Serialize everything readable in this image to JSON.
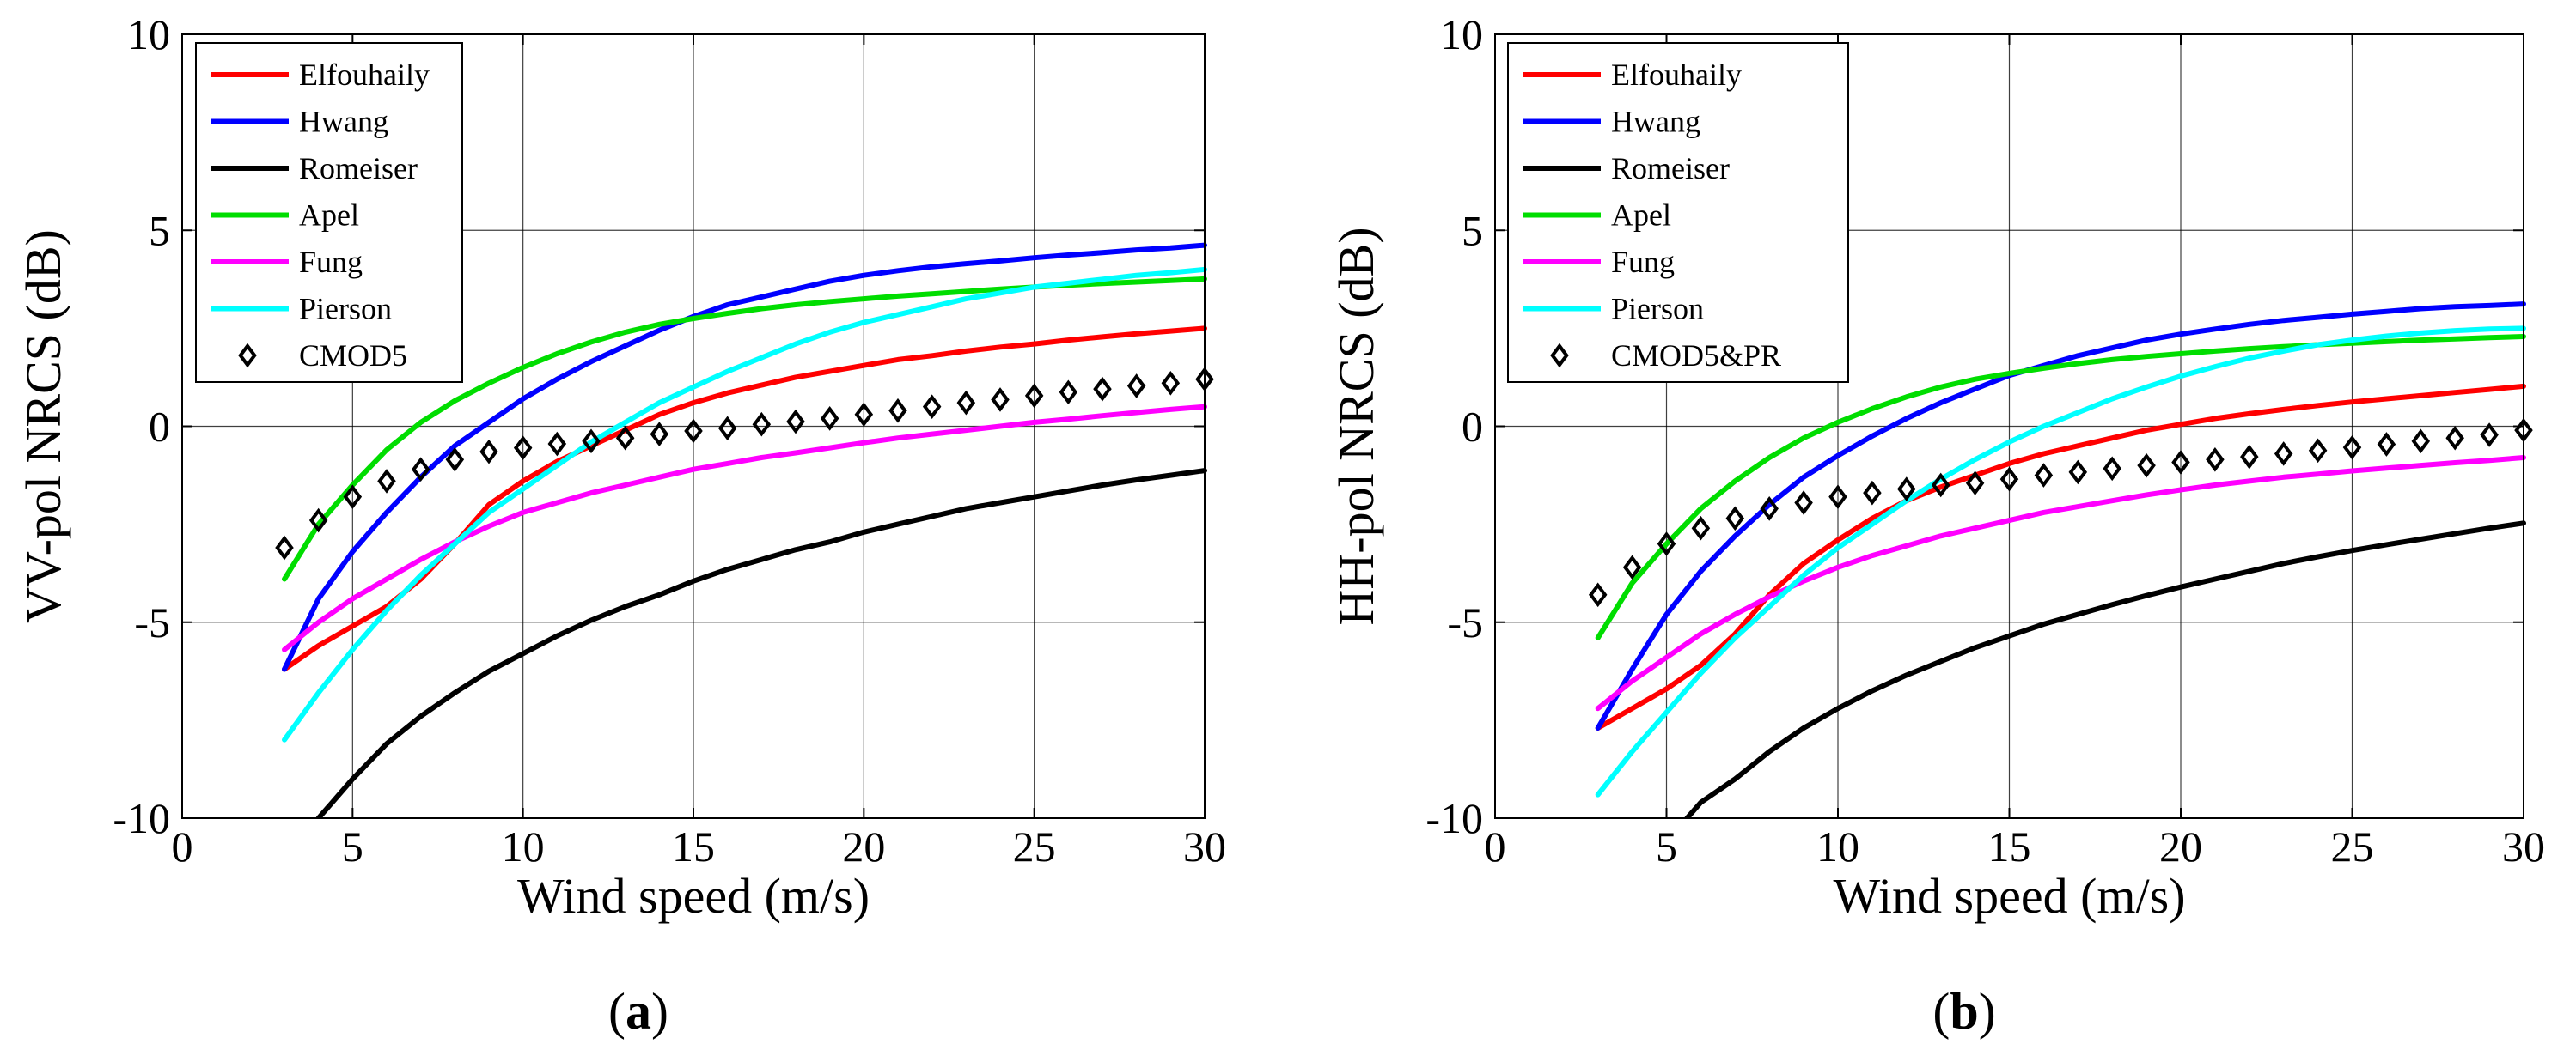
{
  "chart_data": [
    {
      "type": "line",
      "panel_label": "a",
      "xlabel": "Wind speed (m/s)",
      "ylabel": "VV-pol NRCS (dB)",
      "xlim": [
        0,
        30
      ],
      "ylim": [
        -10,
        10
      ],
      "xticks": [
        "0",
        "5",
        "10",
        "15",
        "20",
        "25",
        "30"
      ],
      "yticks": [
        "-10",
        "-5",
        "0",
        "5",
        "10"
      ],
      "grid": true,
      "legend_position": "top-left",
      "series": [
        {
          "name": "Elfouhaily",
          "color": "#ff0000",
          "marker": "none",
          "x": [
            3,
            4,
            5,
            6,
            7,
            8,
            9,
            10,
            11,
            12,
            13,
            14,
            15,
            16,
            17,
            18,
            19,
            20,
            21,
            22,
            23,
            24,
            25,
            26,
            27,
            28,
            29,
            30
          ],
          "y": [
            -6.2,
            -5.6,
            -5.1,
            -4.6,
            -3.9,
            -3.0,
            -2.0,
            -1.4,
            -0.9,
            -0.5,
            -0.1,
            0.3,
            0.6,
            0.85,
            1.05,
            1.25,
            1.4,
            1.55,
            1.7,
            1.8,
            1.92,
            2.02,
            2.1,
            2.2,
            2.28,
            2.36,
            2.43,
            2.5
          ]
        },
        {
          "name": "Hwang",
          "color": "#0000ff",
          "marker": "none",
          "x": [
            3,
            4,
            5,
            6,
            7,
            8,
            9,
            10,
            11,
            12,
            13,
            14,
            15,
            16,
            17,
            18,
            19,
            20,
            21,
            22,
            23,
            24,
            25,
            26,
            27,
            28,
            29,
            30
          ],
          "y": [
            -6.2,
            -4.4,
            -3.2,
            -2.2,
            -1.3,
            -0.5,
            0.1,
            0.7,
            1.2,
            1.65,
            2.05,
            2.45,
            2.8,
            3.1,
            3.3,
            3.5,
            3.7,
            3.85,
            3.97,
            4.07,
            4.15,
            4.22,
            4.3,
            4.37,
            4.43,
            4.5,
            4.55,
            4.62
          ]
        },
        {
          "name": "Romeiser",
          "color": "#000000",
          "marker": "none",
          "x": [
            4,
            5,
            6,
            7,
            8,
            9,
            10,
            11,
            12,
            13,
            14,
            15,
            16,
            17,
            18,
            19,
            20,
            21,
            22,
            23,
            24,
            25,
            26,
            27,
            28,
            29,
            30
          ],
          "y": [
            -10.0,
            -9.0,
            -8.1,
            -7.4,
            -6.8,
            -6.25,
            -5.8,
            -5.35,
            -4.95,
            -4.6,
            -4.3,
            -3.95,
            -3.65,
            -3.4,
            -3.15,
            -2.95,
            -2.7,
            -2.5,
            -2.3,
            -2.1,
            -1.95,
            -1.8,
            -1.65,
            -1.5,
            -1.37,
            -1.25,
            -1.13
          ]
        },
        {
          "name": "Apel",
          "color": "#00dd00",
          "marker": "none",
          "x": [
            3,
            4,
            5,
            6,
            7,
            8,
            9,
            10,
            11,
            12,
            13,
            14,
            15,
            16,
            17,
            18,
            19,
            20,
            21,
            22,
            23,
            24,
            25,
            26,
            27,
            28,
            29,
            30
          ],
          "y": [
            -3.9,
            -2.5,
            -1.5,
            -0.6,
            0.1,
            0.65,
            1.1,
            1.5,
            1.85,
            2.15,
            2.4,
            2.6,
            2.75,
            2.88,
            3.0,
            3.1,
            3.18,
            3.25,
            3.32,
            3.38,
            3.44,
            3.5,
            3.55,
            3.6,
            3.64,
            3.68,
            3.72,
            3.76
          ]
        },
        {
          "name": "Fung",
          "color": "#ff00ff",
          "marker": "none",
          "x": [
            3,
            4,
            5,
            6,
            7,
            8,
            9,
            10,
            11,
            12,
            13,
            14,
            15,
            16,
            17,
            18,
            19,
            20,
            21,
            22,
            23,
            24,
            25,
            26,
            27,
            28,
            29,
            30
          ],
          "y": [
            -5.7,
            -5.0,
            -4.4,
            -3.9,
            -3.4,
            -2.95,
            -2.55,
            -2.2,
            -1.95,
            -1.7,
            -1.5,
            -1.3,
            -1.1,
            -0.95,
            -0.8,
            -0.68,
            -0.55,
            -0.42,
            -0.3,
            -0.2,
            -0.1,
            0.0,
            0.1,
            0.18,
            0.27,
            0.35,
            0.43,
            0.5
          ]
        },
        {
          "name": "Pierson",
          "color": "#00ffff",
          "marker": "none",
          "x": [
            3,
            4,
            5,
            6,
            7,
            8,
            9,
            10,
            11,
            12,
            13,
            14,
            15,
            16,
            17,
            18,
            19,
            20,
            21,
            22,
            23,
            24,
            25,
            26,
            27,
            28,
            29,
            30
          ],
          "y": [
            -8.0,
            -6.8,
            -5.7,
            -4.7,
            -3.8,
            -3.0,
            -2.2,
            -1.6,
            -1.0,
            -0.4,
            0.1,
            0.6,
            1.0,
            1.4,
            1.75,
            2.1,
            2.4,
            2.65,
            2.85,
            3.05,
            3.25,
            3.4,
            3.55,
            3.65,
            3.75,
            3.85,
            3.92,
            4.0
          ]
        },
        {
          "name": "CMOD5",
          "color": "#000000",
          "marker": "diamond",
          "line": "none",
          "x": [
            3,
            4,
            5,
            6,
            7,
            8,
            9,
            10,
            11,
            12,
            13,
            14,
            15,
            16,
            17,
            18,
            19,
            20,
            21,
            22,
            23,
            24,
            25,
            26,
            27,
            28,
            29,
            30
          ],
          "y": [
            -3.1,
            -2.4,
            -1.8,
            -1.4,
            -1.1,
            -0.85,
            -0.65,
            -0.55,
            -0.45,
            -0.38,
            -0.3,
            -0.2,
            -0.12,
            -0.05,
            0.05,
            0.12,
            0.2,
            0.3,
            0.4,
            0.5,
            0.6,
            0.68,
            0.78,
            0.87,
            0.95,
            1.03,
            1.1,
            1.2
          ]
        }
      ]
    },
    {
      "type": "line",
      "panel_label": "b",
      "xlabel": "Wind speed (m/s)",
      "ylabel": "HH-pol NRCS (dB)",
      "xlim": [
        0,
        30
      ],
      "ylim": [
        -10,
        10
      ],
      "xticks": [
        "0",
        "5",
        "10",
        "15",
        "20",
        "25",
        "30"
      ],
      "yticks": [
        "-10",
        "-5",
        "0",
        "5",
        "10"
      ],
      "grid": true,
      "legend_position": "top-left",
      "series": [
        {
          "name": "Elfouhaily",
          "color": "#ff0000",
          "marker": "none",
          "x": [
            3,
            4,
            5,
            6,
            7,
            8,
            9,
            10,
            11,
            12,
            13,
            14,
            15,
            16,
            17,
            18,
            19,
            20,
            21,
            22,
            23,
            24,
            25,
            26,
            27,
            28,
            29,
            30
          ],
          "y": [
            -7.7,
            -7.2,
            -6.7,
            -6.1,
            -5.3,
            -4.3,
            -3.5,
            -2.9,
            -2.35,
            -1.9,
            -1.55,
            -1.25,
            -0.95,
            -0.7,
            -0.5,
            -0.3,
            -0.1,
            0.05,
            0.2,
            0.32,
            0.43,
            0.53,
            0.62,
            0.7,
            0.78,
            0.86,
            0.94,
            1.02
          ]
        },
        {
          "name": "Hwang",
          "color": "#0000ff",
          "marker": "none",
          "x": [
            3,
            4,
            5,
            6,
            7,
            8,
            9,
            10,
            11,
            12,
            13,
            14,
            15,
            16,
            17,
            18,
            19,
            20,
            21,
            22,
            23,
            24,
            25,
            26,
            27,
            28,
            29,
            30
          ],
          "y": [
            -7.7,
            -6.2,
            -4.8,
            -3.7,
            -2.8,
            -2.0,
            -1.3,
            -0.75,
            -0.25,
            0.2,
            0.6,
            0.95,
            1.3,
            1.55,
            1.8,
            2.0,
            2.2,
            2.35,
            2.48,
            2.6,
            2.7,
            2.78,
            2.86,
            2.93,
            3.0,
            3.05,
            3.08,
            3.12
          ]
        },
        {
          "name": "Romeiser",
          "color": "#000000",
          "marker": "none",
          "x": [
            5.6,
            6,
            7,
            8,
            9,
            10,
            11,
            12,
            13,
            14,
            15,
            16,
            17,
            18,
            19,
            20,
            21,
            22,
            23,
            24,
            25,
            26,
            27,
            28,
            29,
            30
          ],
          "y": [
            -10.0,
            -9.6,
            -9.0,
            -8.3,
            -7.7,
            -7.2,
            -6.75,
            -6.35,
            -6.0,
            -5.65,
            -5.35,
            -5.05,
            -4.8,
            -4.55,
            -4.32,
            -4.1,
            -3.9,
            -3.7,
            -3.5,
            -3.33,
            -3.17,
            -3.02,
            -2.88,
            -2.74,
            -2.6,
            -2.47
          ]
        },
        {
          "name": "Apel",
          "color": "#00dd00",
          "marker": "none",
          "x": [
            3,
            4,
            5,
            6,
            7,
            8,
            9,
            10,
            11,
            12,
            13,
            14,
            15,
            16,
            17,
            18,
            19,
            20,
            21,
            22,
            23,
            24,
            25,
            26,
            27,
            28,
            29,
            30
          ],
          "y": [
            -5.4,
            -4.0,
            -3.0,
            -2.1,
            -1.4,
            -0.8,
            -0.3,
            0.1,
            0.45,
            0.75,
            1.0,
            1.2,
            1.35,
            1.48,
            1.6,
            1.7,
            1.78,
            1.85,
            1.92,
            1.98,
            2.03,
            2.08,
            2.12,
            2.16,
            2.2,
            2.23,
            2.26,
            2.29
          ]
        },
        {
          "name": "Fung",
          "color": "#ff00ff",
          "marker": "none",
          "x": [
            3,
            4,
            5,
            6,
            7,
            8,
            9,
            10,
            11,
            12,
            13,
            14,
            15,
            16,
            17,
            18,
            19,
            20,
            21,
            22,
            23,
            24,
            25,
            26,
            27,
            28,
            29,
            30
          ],
          "y": [
            -7.2,
            -6.5,
            -5.9,
            -5.3,
            -4.8,
            -4.35,
            -3.95,
            -3.6,
            -3.3,
            -3.05,
            -2.8,
            -2.6,
            -2.4,
            -2.2,
            -2.05,
            -1.9,
            -1.75,
            -1.62,
            -1.5,
            -1.4,
            -1.3,
            -1.22,
            -1.14,
            -1.07,
            -1.0,
            -0.93,
            -0.87,
            -0.8
          ]
        },
        {
          "name": "Pierson",
          "color": "#00ffff",
          "marker": "none",
          "x": [
            3,
            4,
            5,
            6,
            7,
            8,
            9,
            10,
            11,
            12,
            13,
            14,
            15,
            16,
            17,
            18,
            19,
            20,
            21,
            22,
            23,
            24,
            25,
            26,
            27,
            28,
            29,
            30
          ],
          "y": [
            -9.4,
            -8.3,
            -7.3,
            -6.3,
            -5.4,
            -4.6,
            -3.8,
            -3.1,
            -2.5,
            -1.9,
            -1.35,
            -0.85,
            -0.4,
            0.0,
            0.35,
            0.7,
            1.0,
            1.28,
            1.52,
            1.74,
            1.92,
            2.08,
            2.2,
            2.3,
            2.38,
            2.44,
            2.48,
            2.5
          ]
        },
        {
          "name": "CMOD5&PR",
          "color": "#000000",
          "marker": "diamond",
          "line": "none",
          "x": [
            3,
            4,
            5,
            6,
            7,
            8,
            9,
            10,
            11,
            12,
            13,
            14,
            15,
            16,
            17,
            18,
            19,
            20,
            21,
            22,
            23,
            24,
            25,
            26,
            27,
            28,
            29,
            30
          ],
          "y": [
            -4.3,
            -3.6,
            -3.0,
            -2.6,
            -2.35,
            -2.1,
            -1.95,
            -1.8,
            -1.7,
            -1.6,
            -1.5,
            -1.45,
            -1.35,
            -1.25,
            -1.17,
            -1.08,
            -1.0,
            -0.92,
            -0.85,
            -0.78,
            -0.7,
            -0.62,
            -0.54,
            -0.46,
            -0.38,
            -0.3,
            -0.22,
            -0.1
          ]
        }
      ]
    }
  ]
}
